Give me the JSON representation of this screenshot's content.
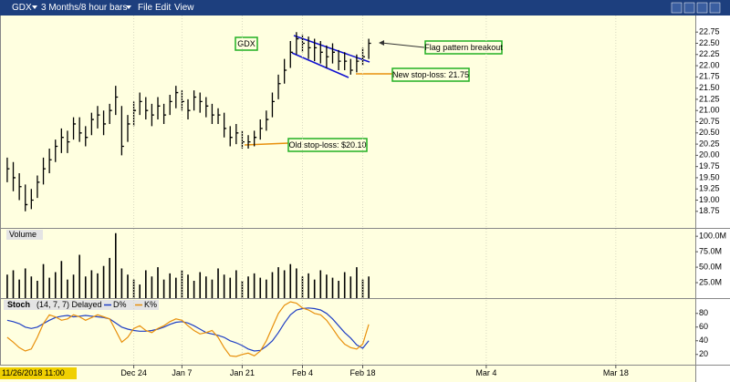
{
  "toolbar": {
    "symbol": "GDX",
    "period": "3 Months/8 hour bars",
    "menus": [
      "File",
      "Edit",
      "View"
    ]
  },
  "cursor_label": "11/26/2018 11:00",
  "chart_data": [
    {
      "type": "ohlc",
      "annotations": [
        "GDX",
        "Flag pattern breakout",
        "New stop-loss: 21.75",
        "Old stop-loss: $20.10"
      ],
      "series": [
        {
          "color": "#000000",
          "high": [
            19.95,
            19.85,
            19.6,
            19.35,
            19.25,
            19.55,
            19.95,
            20.15,
            20.35,
            20.6,
            20.55,
            20.85,
            20.85,
            20.65,
            20.95,
            21.1,
            21.0,
            21.15,
            21.55,
            21.1,
            20.9,
            21.2,
            21.4,
            21.3,
            21.15,
            21.3,
            21.15,
            21.35,
            21.55,
            21.45,
            21.25,
            21.45,
            21.4,
            21.3,
            21.15,
            21.05,
            20.95,
            20.65,
            20.7,
            20.55,
            20.45,
            20.55,
            20.8,
            21.0,
            21.4,
            21.8,
            22.15,
            22.55,
            22.75,
            22.7,
            22.65,
            22.6,
            22.55,
            22.45,
            22.5,
            22.35,
            22.3,
            22.15,
            22.25,
            22.4,
            22.6
          ],
          "low": [
            19.4,
            19.2,
            19.0,
            18.75,
            18.8,
            19.05,
            19.35,
            19.6,
            19.85,
            20.05,
            20.05,
            20.35,
            20.3,
            20.2,
            20.45,
            20.6,
            20.45,
            20.7,
            20.9,
            20.0,
            20.3,
            20.65,
            20.9,
            20.8,
            20.65,
            20.8,
            20.7,
            20.9,
            21.05,
            21.0,
            20.8,
            21.0,
            20.95,
            20.85,
            20.7,
            20.7,
            20.4,
            20.2,
            20.25,
            20.15,
            20.15,
            20.2,
            20.35,
            20.55,
            20.85,
            21.25,
            21.6,
            21.95,
            22.25,
            22.3,
            22.15,
            22.1,
            22.05,
            21.95,
            22.05,
            21.9,
            21.9,
            21.8,
            21.85,
            22.0,
            22.15
          ],
          "close": [
            19.7,
            19.5,
            19.3,
            18.9,
            19.0,
            19.4,
            19.7,
            19.9,
            20.2,
            20.4,
            20.3,
            20.7,
            20.5,
            20.4,
            20.8,
            20.9,
            20.7,
            21.0,
            21.3,
            20.2,
            20.7,
            21.0,
            21.2,
            21.0,
            20.9,
            21.1,
            20.9,
            21.2,
            21.4,
            21.2,
            21.0,
            21.3,
            21.2,
            21.1,
            20.9,
            20.9,
            20.6,
            20.4,
            20.5,
            20.3,
            20.3,
            20.4,
            20.6,
            20.8,
            21.2,
            21.6,
            21.9,
            22.3,
            22.6,
            22.5,
            22.4,
            22.4,
            22.3,
            22.2,
            22.3,
            22.1,
            22.1,
            21.9,
            22.1,
            22.2,
            22.5
          ]
        }
      ],
      "xlim": [
        -1.2,
        114.2
      ],
      "ylim": [
        18.38,
        23.12
      ],
      "yticks": [
        22.75,
        {
          "value": 22.5,
          "label": "22.50"
        },
        22.25,
        {
          "value": 22,
          "label": "22.00"
        },
        21.75,
        {
          "value": 21.5,
          "label": "21.50"
        },
        21.25,
        {
          "value": 21,
          "label": "21.00"
        },
        20.75,
        {
          "value": 20.5,
          "label": "20.50"
        },
        20.25,
        {
          "value": 20,
          "label": "20.00"
        },
        19.75,
        {
          "value": 19.5,
          "label": "19.50"
        },
        19.25,
        {
          "value": 19,
          "label": "19.00"
        },
        18.75
      ]
    },
    {
      "type": "bar",
      "title": "Volume",
      "color": "#000000",
      "values": [
        38,
        45,
        30,
        48,
        35,
        28,
        55,
        33,
        42,
        60,
        30,
        38,
        70,
        35,
        45,
        40,
        52,
        65,
        105,
        48,
        38,
        30,
        22,
        45,
        35,
        50,
        30,
        40,
        33,
        45,
        38,
        28,
        42,
        35,
        30,
        48,
        38,
        33,
        45,
        28,
        35,
        40,
        33,
        30,
        42,
        50,
        45,
        55,
        48,
        35,
        40,
        30,
        45,
        38,
        33,
        28,
        42,
        35,
        50,
        30,
        35
      ],
      "xlim": [
        -1.2,
        114.2
      ],
      "ylim": [
        0,
        112
      ],
      "yticks": [
        {
          "value": 100,
          "label": "100.0M"
        },
        {
          "value": 75,
          "label": "75.0M"
        },
        {
          "value": 50,
          "label": "50.0M"
        },
        {
          "value": 25,
          "label": "25.0M"
        }
      ]
    },
    {
      "type": "line",
      "title": "Stoch",
      "subtitle": "(14, 7, 7) Delayed",
      "series": [
        {
          "name": "D%",
          "color": "#1f3fc4",
          "values": [
            70,
            68,
            65,
            60,
            58,
            60,
            65,
            70,
            74,
            76,
            77,
            75,
            76,
            77,
            76,
            75,
            74,
            72,
            66,
            60,
            57,
            55,
            54,
            54,
            55,
            57,
            60,
            64,
            67,
            68,
            66,
            62,
            57,
            52,
            50,
            48,
            45,
            40,
            37,
            33,
            28,
            25,
            26,
            32,
            40,
            52,
            66,
            78,
            85,
            87,
            88,
            87,
            85,
            80,
            72,
            62,
            52,
            44,
            34,
            29,
            40
          ]
        },
        {
          "name": "K%",
          "color": "#e8900c",
          "values": [
            45,
            38,
            30,
            25,
            28,
            45,
            65,
            78,
            75,
            70,
            72,
            78,
            75,
            70,
            74,
            78,
            75,
            72,
            55,
            38,
            45,
            58,
            62,
            55,
            52,
            58,
            62,
            68,
            72,
            70,
            62,
            55,
            50,
            52,
            55,
            45,
            30,
            18,
            17,
            20,
            22,
            18,
            25,
            40,
            60,
            80,
            92,
            97,
            95,
            88,
            85,
            80,
            78,
            70,
            58,
            45,
            35,
            30,
            28,
            35,
            64
          ]
        }
      ],
      "xlim": [
        -1.2,
        114.2
      ],
      "ylim": [
        5,
        101
      ],
      "yticks": [
        80,
        60,
        40,
        20
      ],
      "xticks": [
        {
          "value": 21,
          "label": "Dec 24"
        },
        {
          "value": 29,
          "label": "Jan 7"
        },
        {
          "value": 39,
          "label": "Jan 21"
        },
        {
          "value": 49,
          "label": "Feb 4"
        },
        {
          "value": 59,
          "label": "Feb 18"
        },
        {
          "value": 79.5,
          "label": "Mar 4"
        },
        {
          "value": 101,
          "label": "Mar 18"
        }
      ]
    }
  ]
}
